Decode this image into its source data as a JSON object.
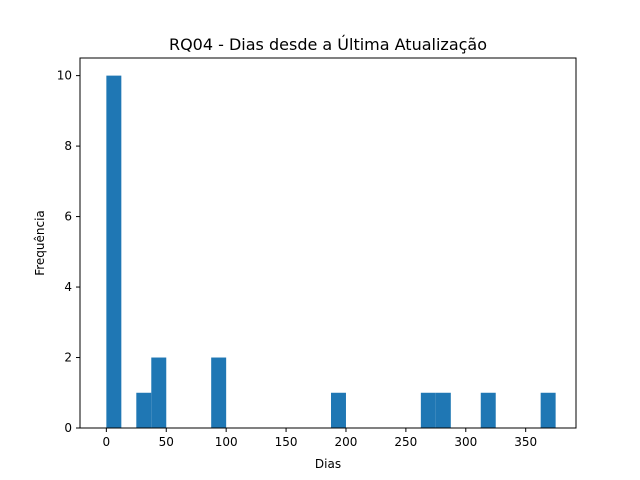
{
  "chart_data": {
    "type": "bar",
    "subtype": "histogram",
    "title": "RQ04 - Dias desde a Última Atualização",
    "xlabel": "Dias",
    "ylabel": "Frequência",
    "xlim": [
      -22,
      392
    ],
    "ylim": [
      0,
      10.5
    ],
    "xticks": [
      0,
      50,
      100,
      150,
      200,
      250,
      300,
      350
    ],
    "yticks": [
      0,
      2,
      4,
      6,
      8,
      10
    ],
    "bin_width": 12.5,
    "bins": [
      {
        "start": 0,
        "end": 12.5,
        "count": 10
      },
      {
        "start": 25,
        "end": 37.5,
        "count": 1
      },
      {
        "start": 37.5,
        "end": 50,
        "count": 2
      },
      {
        "start": 87.5,
        "end": 100,
        "count": 2
      },
      {
        "start": 187.5,
        "end": 200,
        "count": 1
      },
      {
        "start": 262.5,
        "end": 275,
        "count": 1
      },
      {
        "start": 275,
        "end": 287.5,
        "count": 1
      },
      {
        "start": 312.5,
        "end": 325,
        "count": 1
      },
      {
        "start": 362.5,
        "end": 375,
        "count": 1
      }
    ],
    "bar_color": "#1f77b4",
    "grid": false,
    "legend": "none"
  }
}
